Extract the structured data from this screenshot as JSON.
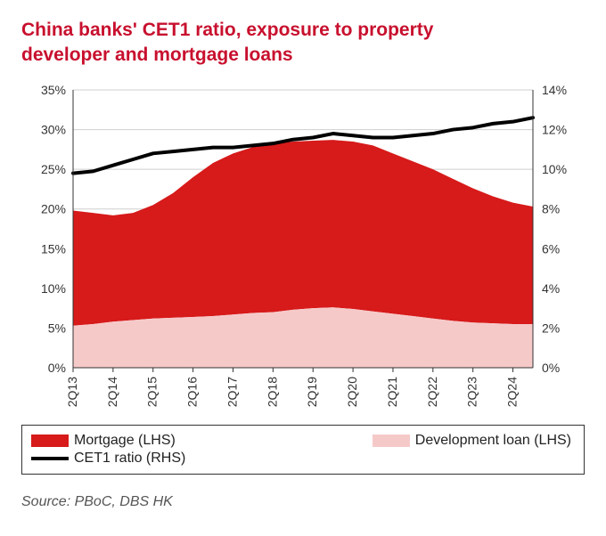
{
  "title_line1": "China banks' CET1 ratio, exposure to property",
  "title_line2": "developer and mortgage loans",
  "title_color": "#c8102e",
  "chart": {
    "type": "area_dual_axis_with_line",
    "background_color": "#ffffff",
    "grid_color": "#cfcfcf",
    "axis_color": "#333333",
    "y_left": {
      "min": 0,
      "max": 35,
      "step": 5,
      "suffix": "%"
    },
    "y_right": {
      "min": 0,
      "max": 14,
      "step": 2,
      "suffix": "%"
    },
    "x_labels": [
      "2Q13",
      "2Q14",
      "2Q15",
      "2Q16",
      "2Q17",
      "2Q18",
      "2Q19",
      "2Q20",
      "2Q21",
      "2Q22",
      "2Q23",
      "2Q24"
    ],
    "x_count": 24,
    "series": {
      "development": {
        "label": "Development loan (LHS)",
        "color": "#f6c9c9",
        "values": [
          5.3,
          5.5,
          5.8,
          6.0,
          6.2,
          6.3,
          6.4,
          6.5,
          6.7,
          6.9,
          7.0,
          7.3,
          7.5,
          7.6,
          7.4,
          7.1,
          6.8,
          6.5,
          6.2,
          5.9,
          5.7,
          5.6,
          5.5,
          5.5
        ]
      },
      "mortgage": {
        "label": "Mortgage (LHS)",
        "color": "#d71a1a",
        "values": [
          19.8,
          19.5,
          19.2,
          19.5,
          20.5,
          22.0,
          24.0,
          25.8,
          27.0,
          27.8,
          28.3,
          28.5,
          28.6,
          28.7,
          28.5,
          28.0,
          27.0,
          26.0,
          25.0,
          23.8,
          22.6,
          21.6,
          20.8,
          20.3
        ]
      },
      "cet1": {
        "label": "CET1 ratio (RHS)",
        "color": "#000000",
        "line_width": 4,
        "values": [
          9.8,
          9.9,
          10.2,
          10.5,
          10.8,
          10.9,
          11.0,
          11.1,
          11.1,
          11.2,
          11.3,
          11.5,
          11.6,
          11.8,
          11.7,
          11.6,
          11.6,
          11.7,
          11.8,
          12.0,
          12.1,
          12.3,
          12.4,
          12.6
        ]
      }
    }
  },
  "legend": {
    "mortgage": "Mortgage (LHS)",
    "development": "Development loan (LHS)",
    "cet1": "CET1 ratio (RHS)"
  },
  "source": "Source: PBoC, DBS HK",
  "fontsize": {
    "title": 21,
    "tick": 14,
    "legend": 16,
    "source": 16
  }
}
